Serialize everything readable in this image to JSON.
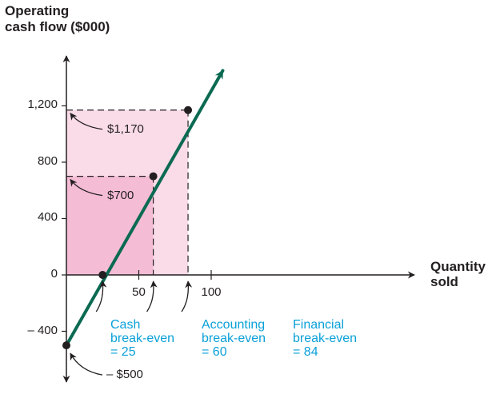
{
  "chart_data": {
    "type": "line",
    "title": "",
    "ylabel": "Operating\ncash flow ($000)",
    "xlabel": "Quantity\nsold",
    "xlim": [
      0,
      120
    ],
    "ylim": [
      -550,
      1500
    ],
    "y_ticks": [
      {
        "value": 1200,
        "label": "1,200"
      },
      {
        "value": 800,
        "label": "800"
      },
      {
        "value": 400,
        "label": "400"
      },
      {
        "value": 0,
        "label": "0"
      },
      {
        "value": -400,
        "label": "– 400"
      }
    ],
    "x_ticks": [
      {
        "value": 50,
        "label": "50"
      },
      {
        "value": 100,
        "label": "100"
      }
    ],
    "series": [
      {
        "points": [
          [
            0,
            -500
          ],
          [
            25,
            0
          ],
          [
            60,
            700
          ],
          [
            84,
            1170
          ],
          [
            108,
            1450
          ]
        ],
        "color": "#0b6a52"
      }
    ],
    "marked_points": [
      {
        "x": 25,
        "y": 0
      },
      {
        "x": 60,
        "y": 700
      },
      {
        "x": 84,
        "y": 1170
      }
    ],
    "annotations": [
      {
        "text": "$1,170",
        "x": 0,
        "y": 1170
      },
      {
        "text": "$700",
        "x": 0,
        "y": 700
      },
      {
        "text": "– $500",
        "x": 0,
        "y": -500
      }
    ],
    "break_even_labels": [
      {
        "text": "Cash\nbreak-even\n= 25",
        "x": 25
      },
      {
        "text": "Accounting\nbreak-even\n= 60",
        "x": 60
      },
      {
        "text": "Financial\nbreak-even\n= 84",
        "x": 84
      }
    ],
    "colors": {
      "line": "#0b6a52",
      "region_financial": "#fadbe8",
      "region_accounting": "#f4bcd5",
      "label_text": "#0aa0d8",
      "axis": "#231f20"
    },
    "grid": false,
    "legend": "none"
  }
}
